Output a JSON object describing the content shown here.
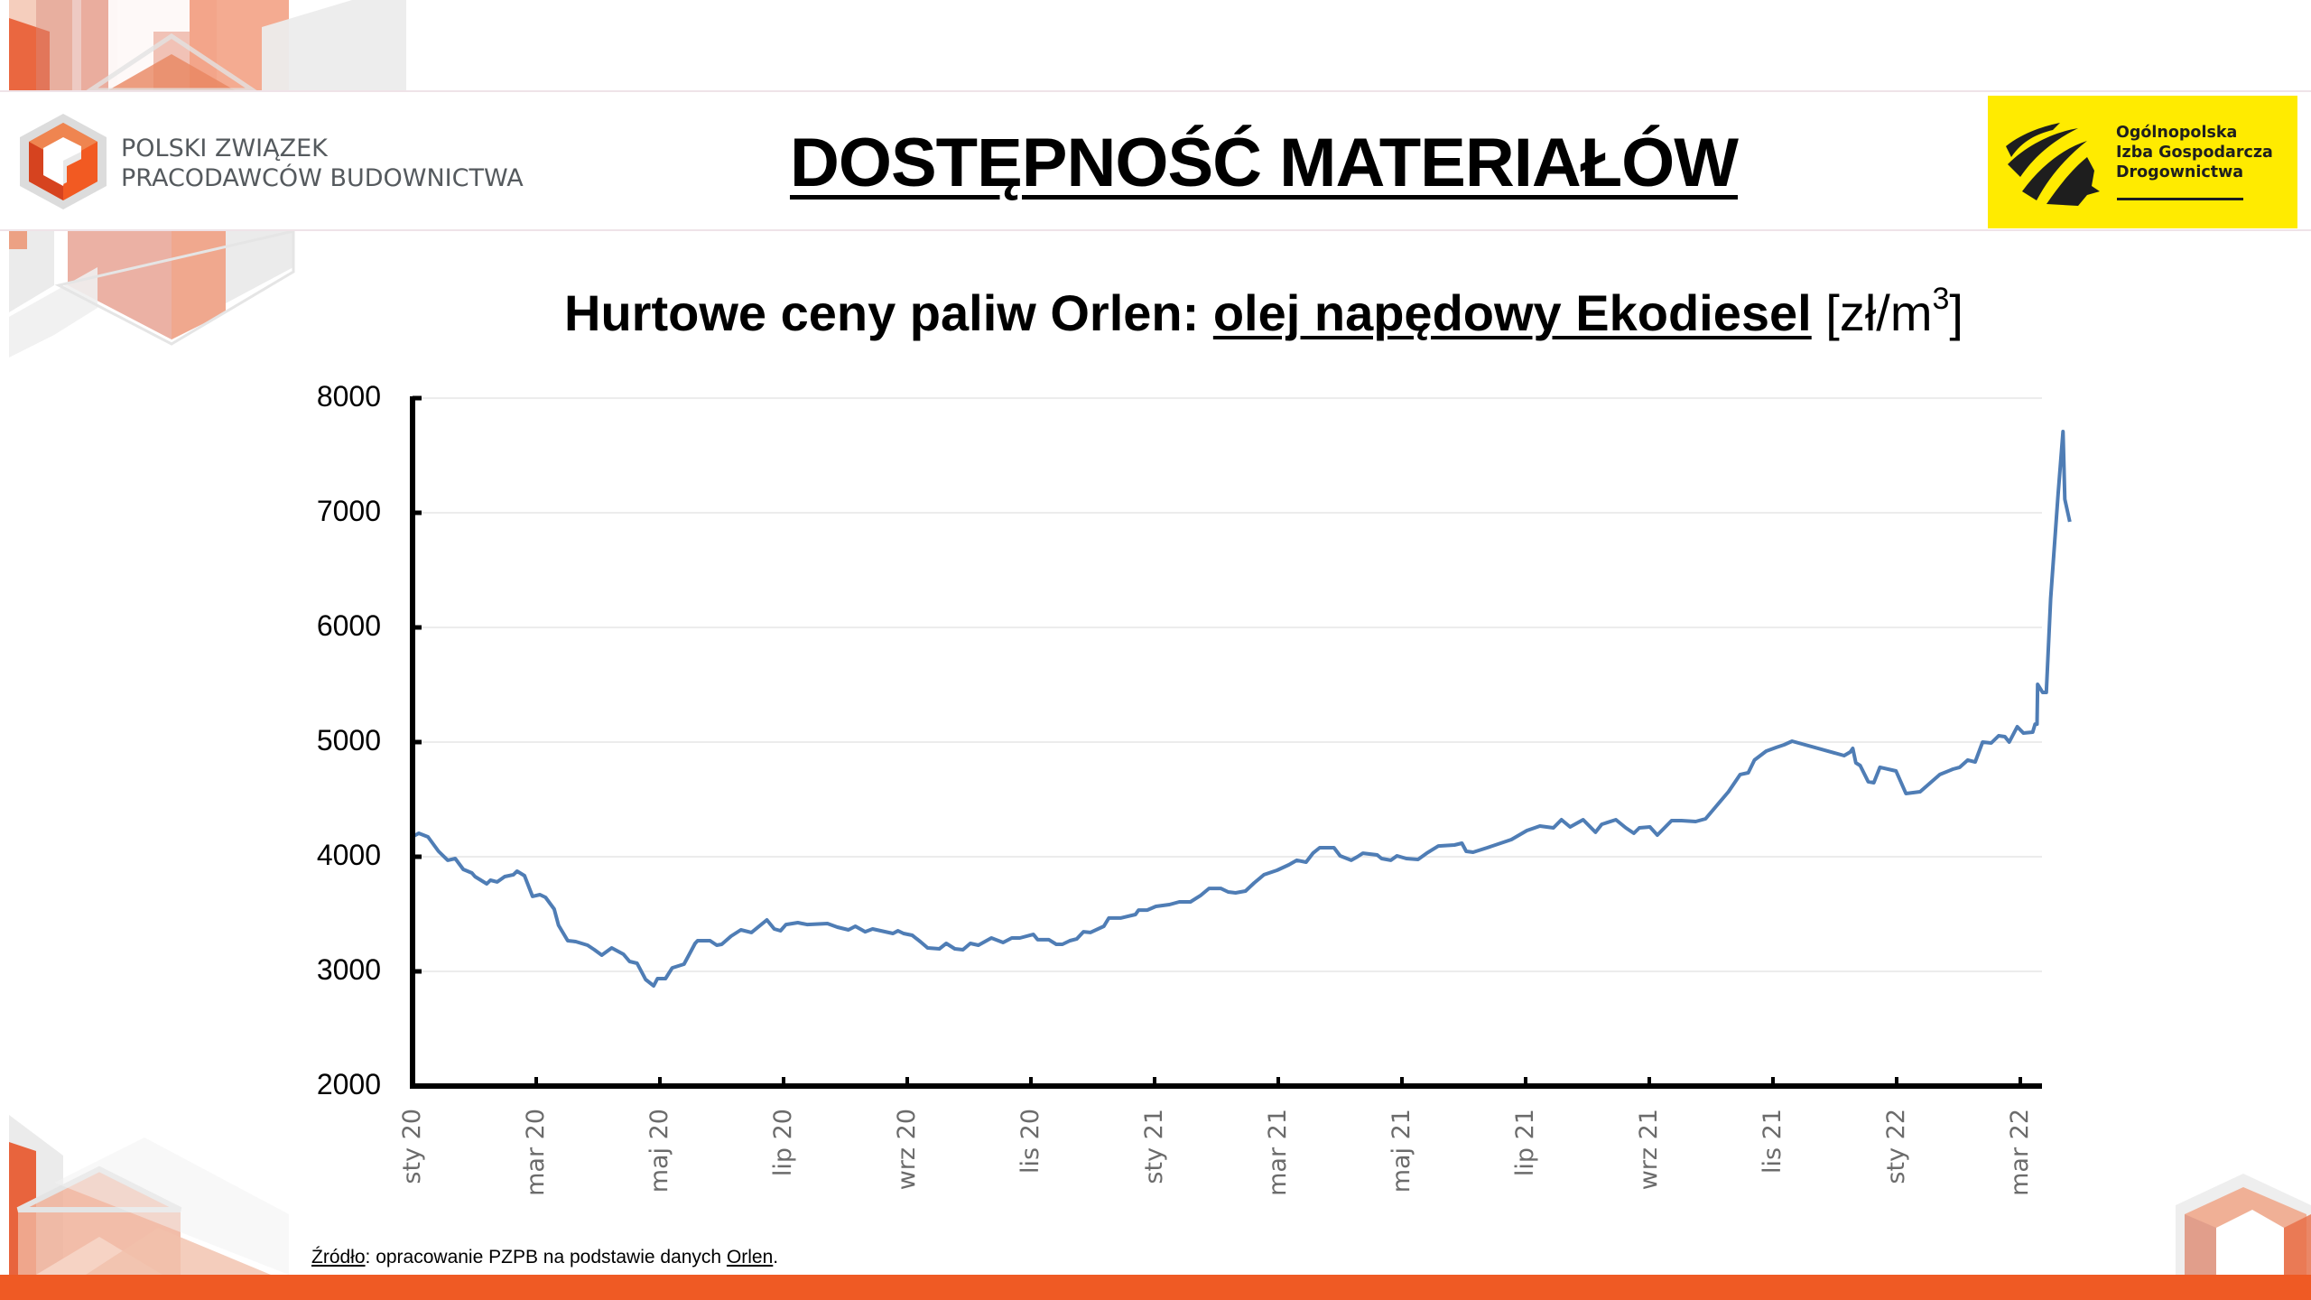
{
  "header": {
    "org_logo": {
      "line1": "POLSKI ZWIĄZEK",
      "line2": "PRACODAWCÓW BUDOWNICTWA",
      "icon": "pzpb-cube-logo-icon"
    },
    "title": "DOSTĘPNOŚĆ MATERIAŁÓW",
    "partner_logo": {
      "line1": "Ogólnopolska",
      "line2": "Izba Gospodarcza",
      "line3": "Drogownictwa",
      "icon": "oigd-road-stripes-icon",
      "background": "#ffeb00"
    }
  },
  "chart_title": {
    "prefix": "Hurtowe ceny paliw Orlen: ",
    "underlined": "olej napędowy Ekodiesel",
    "unit_open": " [zł/m",
    "unit_sup": "3",
    "unit_close": "]"
  },
  "source": {
    "label": "Źródło",
    "text": ": opracowanie PZPB na podstawie danych ",
    "link": "Orlen",
    "end": "."
  },
  "colors": {
    "line": "#4f7db5",
    "accent_orange": "#ef5a24",
    "yellow": "#ffeb00",
    "grid": "#ececec",
    "axis": "#000000"
  },
  "chart_data": {
    "type": "line",
    "title": "Hurtowe ceny paliw Orlen: olej napędowy Ekodiesel [zł/m3]",
    "xlabel": "",
    "ylabel": "zł/m3",
    "ylim": [
      2000,
      8000
    ],
    "yticks": [
      2000,
      3000,
      4000,
      5000,
      6000,
      7000,
      8000
    ],
    "ytick_labels": [
      "2000",
      "3000",
      "4000",
      "5000",
      "6000",
      "7000",
      "8000"
    ],
    "xtick_labels": [
      "sty 20",
      "mar 20",
      "maj 20",
      "lip 20",
      "wrz 20",
      "lis 20",
      "sty 21",
      "mar 21",
      "maj 21",
      "lip 21",
      "wrz 21",
      "lis 21",
      "sty 22",
      "mar 22"
    ],
    "xtick_month_offsets": [
      0,
      2,
      4,
      6,
      8,
      10,
      12,
      14,
      16,
      18,
      20,
      22,
      24,
      26
    ],
    "x_unit": "months since sty 20",
    "grid": true,
    "legend": null,
    "series": [
      {
        "name": "olej napędowy Ekodiesel",
        "points": [
          [
            0.02,
            4181
          ],
          [
            0.1,
            4205
          ],
          [
            0.25,
            4173
          ],
          [
            0.42,
            4047
          ],
          [
            0.57,
            3969
          ],
          [
            0.69,
            3984
          ],
          [
            0.82,
            3890
          ],
          [
            0.96,
            3858
          ],
          [
            1.01,
            3827
          ],
          [
            1.2,
            3764
          ],
          [
            1.26,
            3795
          ],
          [
            1.37,
            3780
          ],
          [
            1.49,
            3827
          ],
          [
            1.63,
            3843
          ],
          [
            1.69,
            3874
          ],
          [
            1.81,
            3835
          ],
          [
            1.94,
            3654
          ],
          [
            2.06,
            3669
          ],
          [
            2.15,
            3646
          ],
          [
            2.29,
            3543
          ],
          [
            2.36,
            3402
          ],
          [
            2.51,
            3268
          ],
          [
            2.64,
            3260
          ],
          [
            2.83,
            3228
          ],
          [
            2.94,
            3189
          ],
          [
            3.06,
            3142
          ],
          [
            3.22,
            3205
          ],
          [
            3.41,
            3150
          ],
          [
            3.51,
            3087
          ],
          [
            3.63,
            3071
          ],
          [
            3.77,
            2929
          ],
          [
            3.9,
            2874
          ],
          [
            3.96,
            2937
          ],
          [
            4.09,
            2937
          ],
          [
            4.2,
            3031
          ],
          [
            4.39,
            3063
          ],
          [
            4.57,
            3244
          ],
          [
            4.61,
            3268
          ],
          [
            4.81,
            3268
          ],
          [
            4.92,
            3228
          ],
          [
            5.0,
            3236
          ],
          [
            5.15,
            3307
          ],
          [
            5.31,
            3362
          ],
          [
            5.48,
            3339
          ],
          [
            5.73,
            3449
          ],
          [
            5.85,
            3370
          ],
          [
            5.95,
            3354
          ],
          [
            6.04,
            3409
          ],
          [
            6.23,
            3425
          ],
          [
            6.38,
            3409
          ],
          [
            6.71,
            3417
          ],
          [
            6.87,
            3386
          ],
          [
            7.05,
            3362
          ],
          [
            7.16,
            3394
          ],
          [
            7.32,
            3346
          ],
          [
            7.44,
            3370
          ],
          [
            7.77,
            3331
          ],
          [
            7.85,
            3354
          ],
          [
            7.94,
            3331
          ],
          [
            8.08,
            3315
          ],
          [
            8.21,
            3260
          ],
          [
            8.33,
            3205
          ],
          [
            8.52,
            3197
          ],
          [
            8.63,
            3244
          ],
          [
            8.77,
            3197
          ],
          [
            8.9,
            3189
          ],
          [
            9.02,
            3244
          ],
          [
            9.15,
            3228
          ],
          [
            9.36,
            3291
          ],
          [
            9.55,
            3252
          ],
          [
            9.69,
            3291
          ],
          [
            9.82,
            3291
          ],
          [
            10.04,
            3323
          ],
          [
            10.11,
            3276
          ],
          [
            10.29,
            3276
          ],
          [
            10.41,
            3236
          ],
          [
            10.51,
            3236
          ],
          [
            10.63,
            3268
          ],
          [
            10.74,
            3283
          ],
          [
            10.85,
            3346
          ],
          [
            10.96,
            3339
          ],
          [
            11.18,
            3394
          ],
          [
            11.26,
            3465
          ],
          [
            11.45,
            3465
          ],
          [
            11.69,
            3496
          ],
          [
            11.74,
            3535
          ],
          [
            11.88,
            3535
          ],
          [
            12.02,
            3567
          ],
          [
            12.24,
            3583
          ],
          [
            12.4,
            3606
          ],
          [
            12.58,
            3606
          ],
          [
            12.74,
            3661
          ],
          [
            12.88,
            3724
          ],
          [
            13.07,
            3724
          ],
          [
            13.19,
            3693
          ],
          [
            13.31,
            3685
          ],
          [
            13.47,
            3701
          ],
          [
            13.61,
            3772
          ],
          [
            13.77,
            3843
          ],
          [
            13.98,
            3882
          ],
          [
            14.17,
            3929
          ],
          [
            14.3,
            3969
          ],
          [
            14.45,
            3953
          ],
          [
            14.56,
            4031
          ],
          [
            14.67,
            4079
          ],
          [
            14.9,
            4079
          ],
          [
            15.0,
            4008
          ],
          [
            15.18,
            3969
          ],
          [
            15.28,
            4000
          ],
          [
            15.37,
            4031
          ],
          [
            15.6,
            4016
          ],
          [
            15.67,
            3984
          ],
          [
            15.82,
            3969
          ],
          [
            15.92,
            4008
          ],
          [
            16.07,
            3984
          ],
          [
            16.26,
            3976
          ],
          [
            16.4,
            4031
          ],
          [
            16.59,
            4094
          ],
          [
            16.85,
            4102
          ],
          [
            16.97,
            4118
          ],
          [
            17.04,
            4047
          ],
          [
            17.15,
            4039
          ],
          [
            17.38,
            4079
          ],
          [
            17.77,
            4150
          ],
          [
            18.02,
            4228
          ],
          [
            18.23,
            4268
          ],
          [
            18.45,
            4252
          ],
          [
            18.58,
            4323
          ],
          [
            18.72,
            4260
          ],
          [
            18.93,
            4323
          ],
          [
            19.13,
            4213
          ],
          [
            19.23,
            4283
          ],
          [
            19.46,
            4323
          ],
          [
            19.62,
            4252
          ],
          [
            19.75,
            4205
          ],
          [
            19.84,
            4252
          ],
          [
            20.01,
            4260
          ],
          [
            20.13,
            4189
          ],
          [
            20.36,
            4315
          ],
          [
            20.52,
            4315
          ],
          [
            20.75,
            4307
          ],
          [
            20.91,
            4331
          ],
          [
            21.07,
            4433
          ],
          [
            21.28,
            4567
          ],
          [
            21.47,
            4717
          ],
          [
            21.6,
            4732
          ],
          [
            21.7,
            4843
          ],
          [
            21.89,
            4921
          ],
          [
            22.05,
            4953
          ],
          [
            22.18,
            4976
          ],
          [
            22.31,
            5008
          ],
          [
            22.99,
            4906
          ],
          [
            23.15,
            4882
          ],
          [
            23.25,
            4913
          ],
          [
            23.29,
            4945
          ],
          [
            23.34,
            4819
          ],
          [
            23.41,
            4795
          ],
          [
            23.54,
            4654
          ],
          [
            23.63,
            4646
          ],
          [
            23.73,
            4780
          ],
          [
            23.99,
            4748
          ],
          [
            24.15,
            4551
          ],
          [
            24.38,
            4567
          ],
          [
            24.7,
            4717
          ],
          [
            24.91,
            4764
          ],
          [
            25.02,
            4780
          ],
          [
            25.15,
            4843
          ],
          [
            25.27,
            4827
          ],
          [
            25.39,
            5000
          ],
          [
            25.53,
            4992
          ],
          [
            25.65,
            5055
          ],
          [
            25.75,
            5047
          ],
          [
            25.82,
            5000
          ],
          [
            25.95,
            5134
          ],
          [
            26.05,
            5079
          ],
          [
            26.2,
            5087
          ],
          [
            26.24,
            5157
          ],
          [
            26.27,
            5157
          ],
          [
            26.28,
            5504
          ],
          [
            26.36,
            5433
          ],
          [
            26.42,
            5433
          ],
          [
            26.49,
            6252
          ],
          [
            26.61,
            7157
          ],
          [
            26.69,
            7709
          ],
          [
            26.72,
            7118
          ],
          [
            26.8,
            6921
          ]
        ]
      }
    ]
  }
}
